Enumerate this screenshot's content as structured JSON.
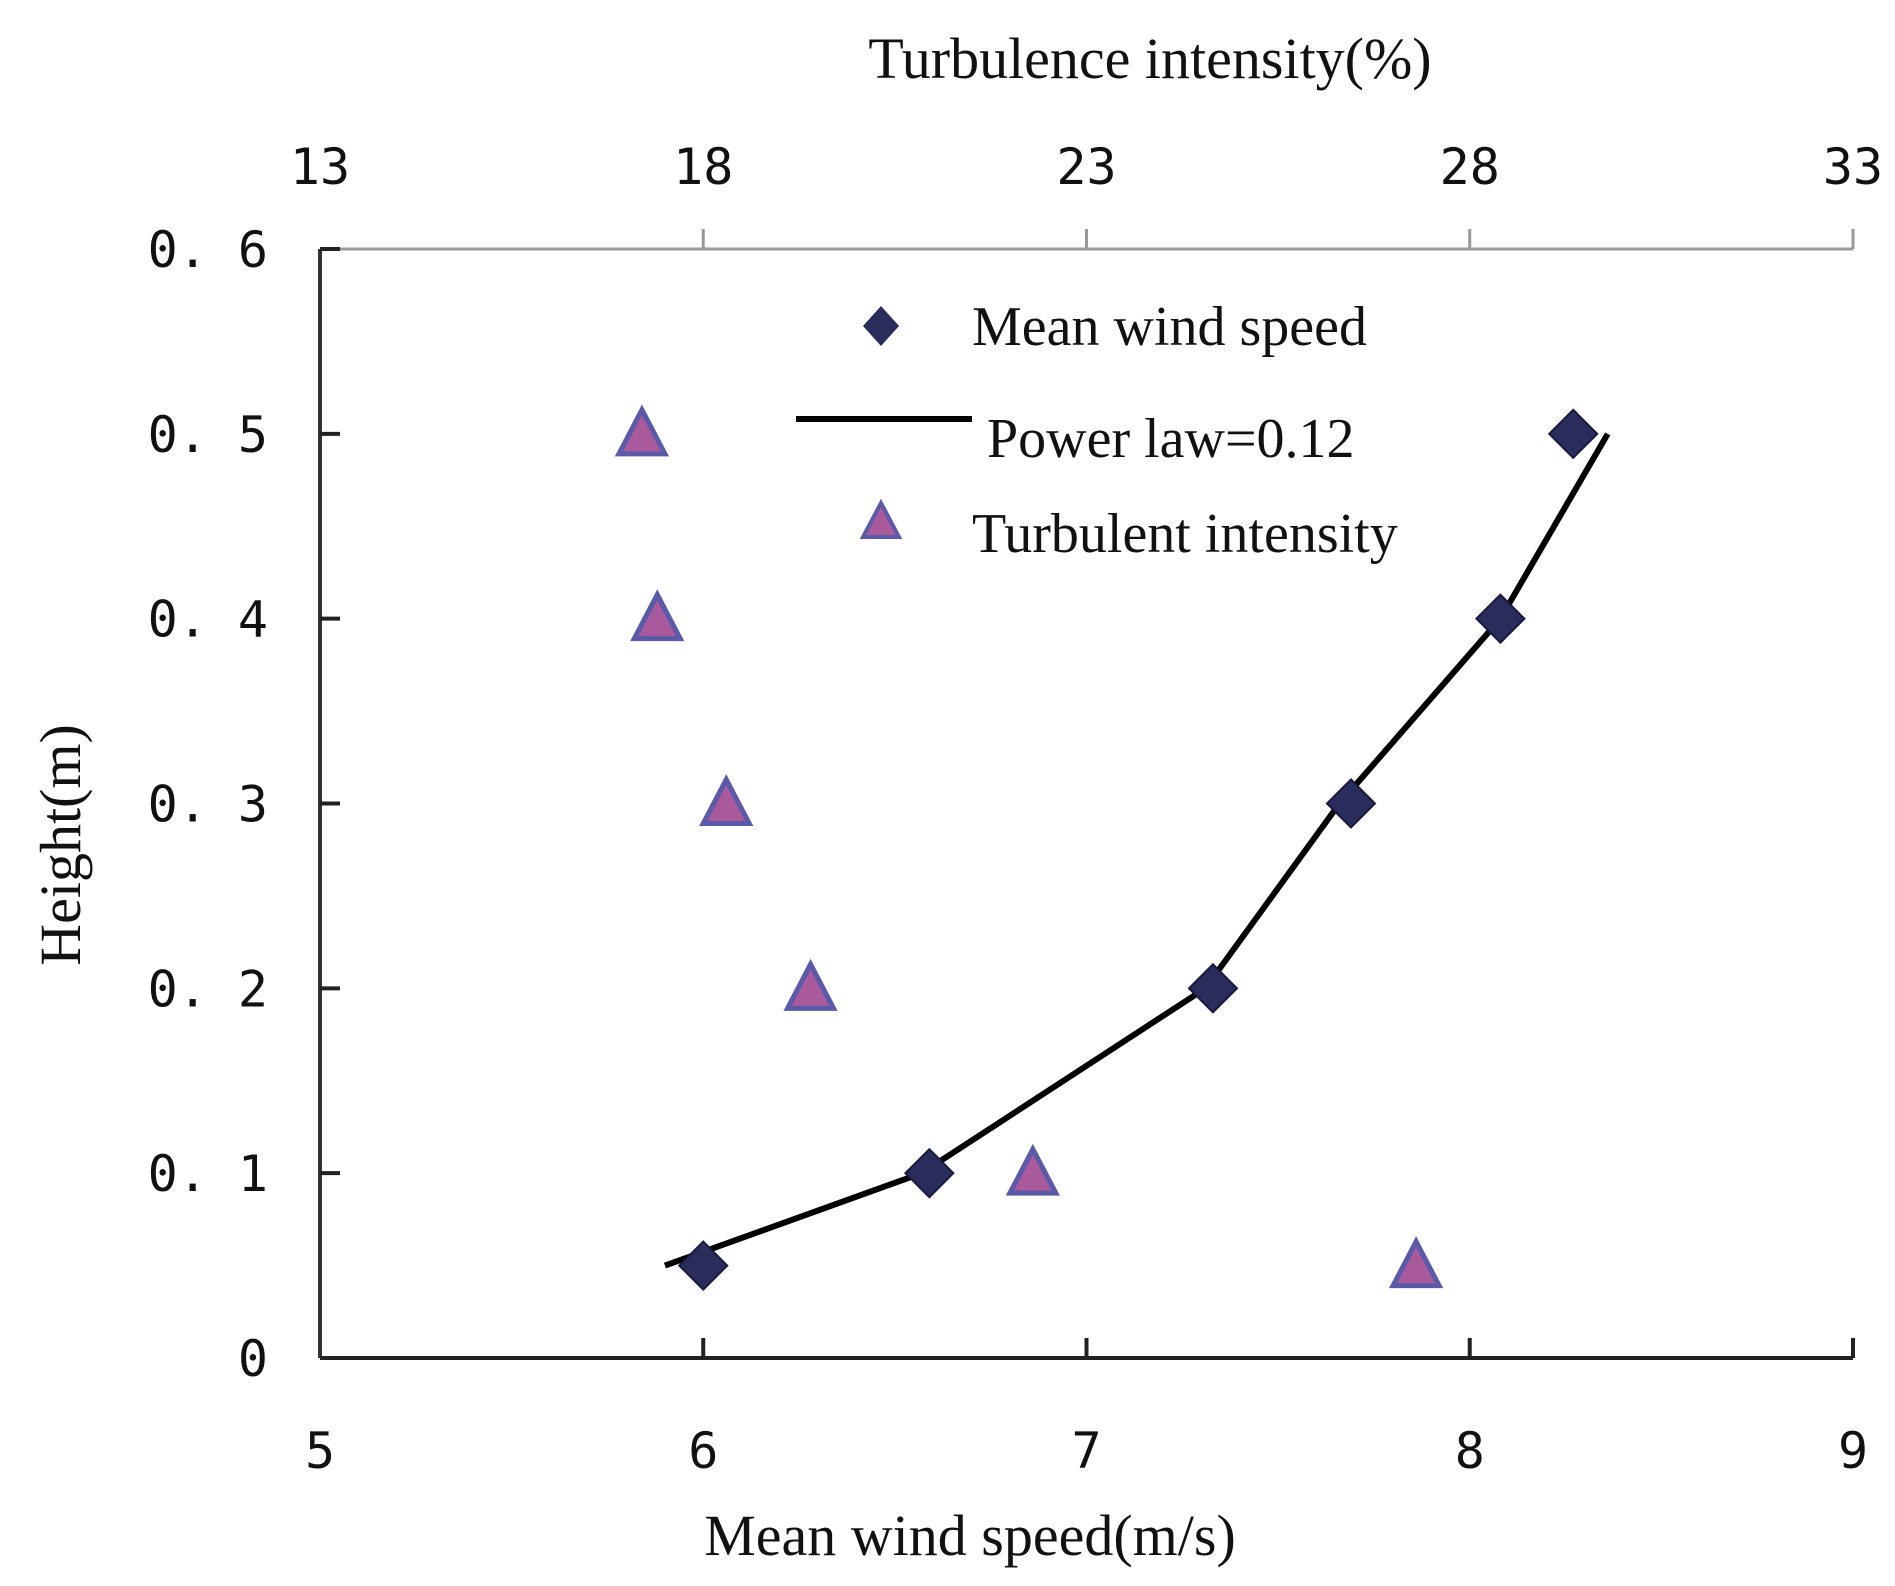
{
  "chart_data": {
    "type": "scatter",
    "title": "",
    "xlabel": "Mean wind speed(m/s)",
    "x2label": "Turbulence intensity(%)",
    "ylabel": "Height(m)",
    "xlim": [
      5,
      9
    ],
    "x2lim": [
      13,
      33
    ],
    "ylim": [
      0,
      0.6
    ],
    "xticks": [
      "5",
      "6",
      "7",
      "8",
      "9"
    ],
    "x2ticks": [
      "13",
      "18",
      "23",
      "28",
      "33"
    ],
    "yticks": [
      "0",
      "0. 1",
      "0. 2",
      "0. 3",
      "0. 4",
      "0. 5",
      "0. 6"
    ],
    "grid": false,
    "legend_position": "top-right",
    "series": [
      {
        "name": "Mean wind speed",
        "type": "scatter",
        "marker": "diamond",
        "axis": "bottom",
        "color": "#2a2c5c",
        "x": [
          6.0,
          6.59,
          7.33,
          7.69,
          8.08,
          8.27
        ],
        "y": [
          0.05,
          0.1,
          0.2,
          0.3,
          0.4,
          0.5
        ]
      },
      {
        "name": "Power law=0.12",
        "type": "line",
        "axis": "bottom",
        "color": "#000000",
        "x": [
          5.9,
          6.57,
          7.31,
          7.66,
          8.08,
          8.36
        ],
        "y": [
          0.05,
          0.1,
          0.2,
          0.3,
          0.4,
          0.5
        ]
      },
      {
        "name": "Turbulent intensity",
        "type": "scatter",
        "marker": "triangle",
        "axis": "top",
        "color": "#a85a9c",
        "edge_color": "#5a5aa8",
        "x": [
          17.2,
          17.4,
          18.3,
          19.4,
          22.3,
          27.3
        ],
        "y": [
          0.5,
          0.4,
          0.3,
          0.2,
          0.1,
          0.05
        ]
      }
    ],
    "ylabel_color": "#c0661e"
  }
}
